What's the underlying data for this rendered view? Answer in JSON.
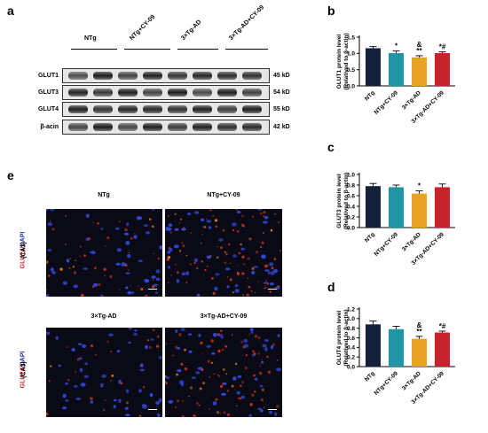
{
  "panels": {
    "a": "a",
    "b": "b",
    "c": "c",
    "d": "d",
    "e": "e"
  },
  "blot": {
    "groups": [
      "NTg",
      "NTg+CY-09",
      "3×Tg-AD",
      "3×Tg-AD+CY-09"
    ],
    "rows": [
      {
        "name": "GLUT1",
        "kd": "45 kD"
      },
      {
        "name": "GLUT3",
        "kd": "54 kD"
      },
      {
        "name": "GLUT4",
        "kd": "55 kD"
      },
      {
        "name": "β-acin",
        "kd": "42 kD"
      }
    ]
  },
  "micro": {
    "titles": [
      "NTg",
      "NTg+CY-09",
      "3×Tg-AD",
      "3×Tg-AD+CY-09"
    ],
    "side_label_stain": "GLUT4/DAPI",
    "side_label_region": "(CA3)"
  },
  "colors": {
    "NTg": "#13213a",
    "NTg+CY-09": "#1f95a5",
    "3×Tg-AD": "#e8a326",
    "3×Tg-AD+CY-09": "#c8232c"
  },
  "chart_data": [
    {
      "type": "bar",
      "id": "b",
      "categories": [
        "NTg",
        "NTg+CY-09",
        "3×Tg-AD",
        "3×Tg-AD+CY-09"
      ],
      "values": [
        1.16,
        1.01,
        0.88,
        1.01
      ],
      "errors": [
        0.05,
        0.07,
        0.05,
        0.04
      ],
      "annotations": [
        "",
        "*",
        "&\n**",
        "*#"
      ],
      "ylabel": "GLUT1 protein level\n(Relatived to β-actin)",
      "ylim": [
        0,
        1.5
      ],
      "yticks": [
        "0.0",
        "0.5",
        "1.0",
        "1.5"
      ],
      "yticks_values": [
        0,
        0.5,
        1.0,
        1.5
      ]
    },
    {
      "type": "bar",
      "id": "c",
      "categories": [
        "NTg",
        "NTg+CY-09",
        "3×Tg-AD",
        "3×Tg-AD+CY-09"
      ],
      "values": [
        0.78,
        0.76,
        0.64,
        0.76
      ],
      "errors": [
        0.05,
        0.04,
        0.05,
        0.06
      ],
      "annotations": [
        "",
        "",
        "*",
        ""
      ],
      "ylabel": "GLUT3 protein level\n(Relatived to β-actin)",
      "ylim": [
        0,
        1.0
      ],
      "yticks": [
        "0.0",
        "0.2",
        "0.4",
        "0.6",
        "0.8",
        "1.0"
      ],
      "yticks_values": [
        0,
        0.2,
        0.4,
        0.6,
        0.8,
        1.0
      ]
    },
    {
      "type": "bar",
      "id": "d",
      "categories": [
        "NTg",
        "NTg+CY-09",
        "3×Tg-AD",
        "3×Tg-AD+CY-09"
      ],
      "values": [
        0.88,
        0.78,
        0.58,
        0.71
      ],
      "errors": [
        0.07,
        0.06,
        0.05,
        0.03
      ],
      "annotations": [
        "",
        "",
        "&\n**",
        "*#"
      ],
      "ylabel": "GLUT4 protein level\n(Relatived to β-actin)",
      "ylim": [
        0,
        1.2
      ],
      "yticks": [
        "0.0",
        "0.2",
        "0.4",
        "0.6",
        "0.8",
        "1.0",
        "1.2"
      ],
      "yticks_values": [
        0,
        0.2,
        0.4,
        0.6,
        0.8,
        1.0,
        1.2
      ]
    }
  ]
}
